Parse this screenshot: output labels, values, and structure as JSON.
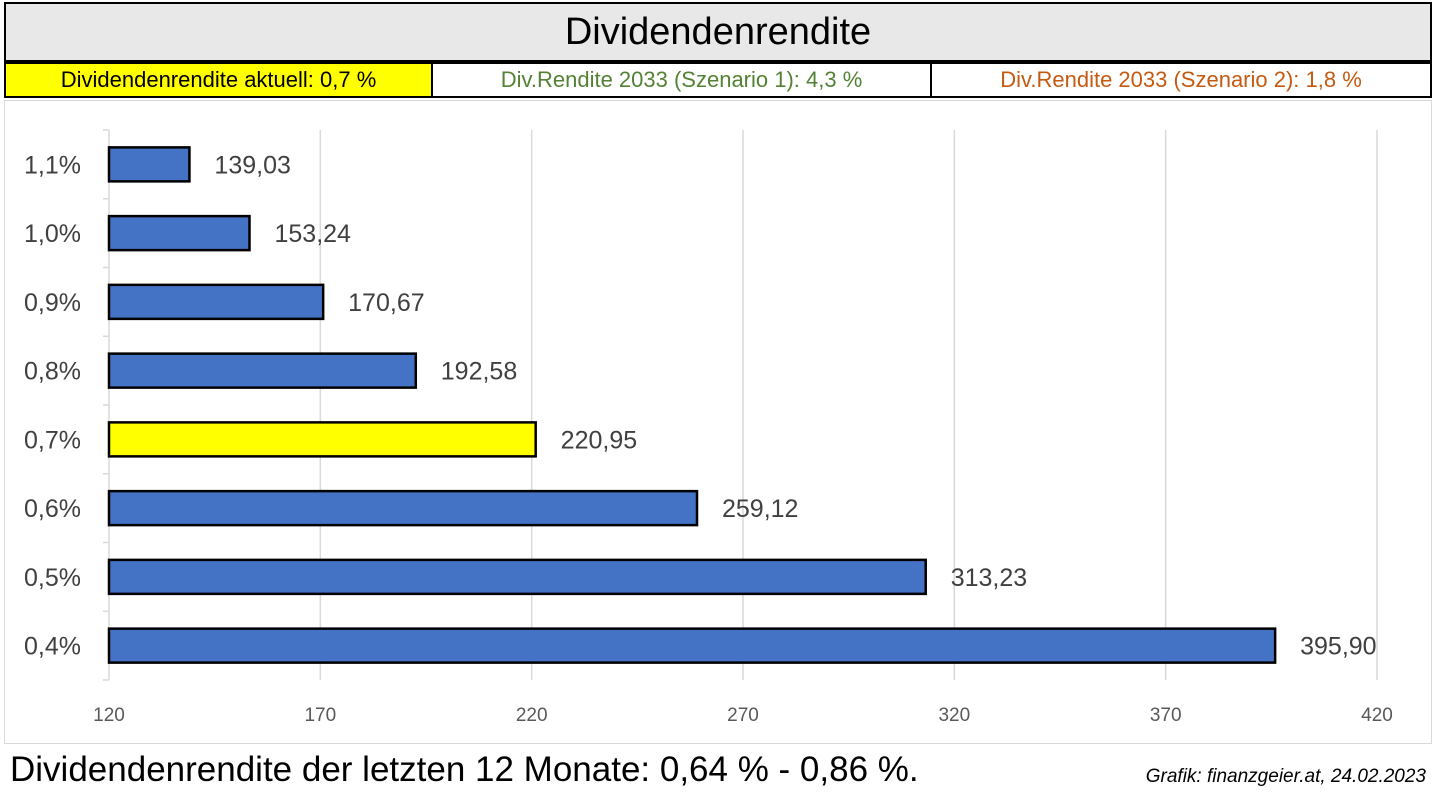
{
  "title": "Dividendenrendite",
  "info": {
    "current": "Dividendenrendite aktuell: 0,7 %",
    "scenario1": "Div.Rendite 2033 (Szenario 1): 4,3 %",
    "scenario2": "Div.Rendite 2033 (Szenario 2): 1,8 %"
  },
  "colors": {
    "bar": "#4472c4",
    "highlight": "#ffff00",
    "scenario1_text": "#548235",
    "scenario2_text": "#c55a11",
    "grid": "#d9d9d9"
  },
  "chart_data": {
    "type": "bar",
    "orientation": "horizontal",
    "categories": [
      "1,1%",
      "1,0%",
      "0,9%",
      "0,8%",
      "0,7%",
      "0,6%",
      "0,5%",
      "0,4%"
    ],
    "values": [
      139.03,
      153.24,
      170.67,
      192.58,
      220.95,
      259.12,
      313.23,
      395.9
    ],
    "value_labels": [
      "139,03",
      "153,24",
      "170,67",
      "192,58",
      "220,95",
      "259,12",
      "313,23",
      "395,90"
    ],
    "highlight_category": "0,7%",
    "xlim": [
      120,
      420
    ],
    "xticks": [
      120,
      170,
      220,
      270,
      320,
      370,
      420
    ],
    "xtick_labels": [
      "120",
      "170",
      "220",
      "270",
      "320",
      "370",
      "420"
    ],
    "grid": "vertical"
  },
  "footer": {
    "summary": "Dividendenrendite der letzten 12 Monate: 0,64 % - 0,86 %.",
    "credit": "Grafik: finanzgeier.at, 24.02.2023"
  }
}
